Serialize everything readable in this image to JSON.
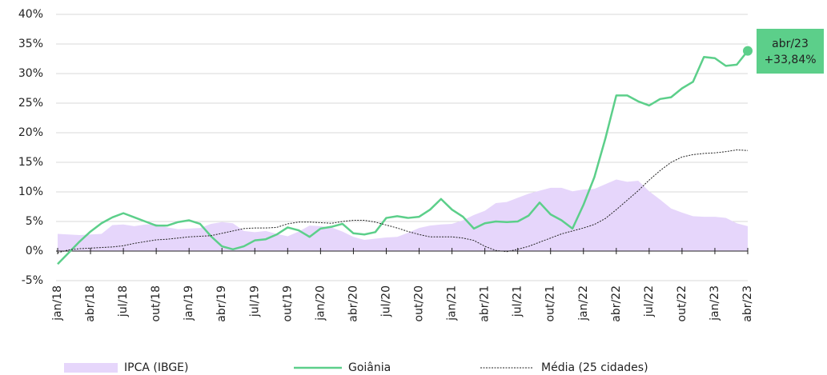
{
  "chart_data": {
    "type": "line",
    "categories": [
      "jan/18",
      null,
      null,
      "abr/18",
      null,
      null,
      "jul/18",
      null,
      null,
      "out/18",
      null,
      null,
      "jan/19",
      null,
      null,
      "abr/19",
      null,
      null,
      "jul/19",
      null,
      null,
      "out/19",
      null,
      null,
      "jan/20",
      null,
      null,
      "abr/20",
      null,
      null,
      "jul/20",
      null,
      null,
      "out/20",
      null,
      null,
      "jan/21",
      null,
      null,
      "abr/21",
      null,
      null,
      "jul/21",
      null,
      null,
      "out/21",
      null,
      null,
      "jan/22",
      null,
      null,
      "abr/22",
      null,
      null,
      "jul/22",
      null,
      null,
      "out/22",
      null,
      null,
      "jan/23",
      null,
      null,
      "abr/23"
    ],
    "series": [
      {
        "name": "IPCA (IBGE)",
        "kind": "area",
        "color": "#e6d6fb",
        "values": [
          2.9,
          2.8,
          2.7,
          2.8,
          2.9,
          4.4,
          4.5,
          4.2,
          4.5,
          4.6,
          4.0,
          3.7,
          3.8,
          3.9,
          4.6,
          4.9,
          4.7,
          3.4,
          3.2,
          3.4,
          2.9,
          2.5,
          3.3,
          4.3,
          4.2,
          4.0,
          3.3,
          2.4,
          1.9,
          2.1,
          2.3,
          2.4,
          3.1,
          3.9,
          4.3,
          4.5,
          4.6,
          5.2,
          6.1,
          6.8,
          8.1,
          8.3,
          9.0,
          9.7,
          10.2,
          10.7,
          10.7,
          10.1,
          10.4,
          10.5,
          11.3,
          12.1,
          11.7,
          11.9,
          10.1,
          8.7,
          7.2,
          6.5,
          5.9,
          5.8,
          5.8,
          5.6,
          4.7,
          4.2
        ]
      },
      {
        "name": "Goiânia",
        "kind": "line",
        "color": "#5ccf8a",
        "values": [
          -2.2,
          -0.3,
          1.6,
          3.3,
          4.7,
          5.7,
          6.4,
          5.7,
          5.0,
          4.3,
          4.3,
          4.9,
          5.2,
          4.6,
          2.5,
          0.8,
          0.3,
          0.8,
          1.8,
          2.0,
          2.8,
          4.0,
          3.5,
          2.4,
          3.8,
          4.1,
          4.6,
          3.0,
          2.8,
          3.2,
          5.6,
          5.9,
          5.6,
          5.8,
          7.0,
          8.8,
          7.0,
          5.8,
          3.8,
          4.7,
          5.0,
          4.9,
          5.0,
          6.0,
          8.2,
          6.2,
          5.2,
          3.8,
          7.8,
          12.5,
          19.0,
          26.3,
          26.3,
          25.3,
          24.6,
          25.7,
          26.0,
          27.5,
          28.6,
          32.8,
          32.6,
          31.3,
          31.5,
          33.84
        ]
      },
      {
        "name": "Média (25 cidades)",
        "kind": "dotted",
        "color": "#222222",
        "values": [
          -0.3,
          0.2,
          0.4,
          0.5,
          0.6,
          0.7,
          0.9,
          1.3,
          1.6,
          1.9,
          2.0,
          2.2,
          2.4,
          2.5,
          2.6,
          3.0,
          3.4,
          3.8,
          3.9,
          3.9,
          4.0,
          4.6,
          4.9,
          4.9,
          4.8,
          4.7,
          5.0,
          5.2,
          5.2,
          4.9,
          4.4,
          3.9,
          3.3,
          2.8,
          2.4,
          2.4,
          2.4,
          2.2,
          1.8,
          0.8,
          0.1,
          -0.1,
          0.3,
          0.8,
          1.5,
          2.2,
          2.9,
          3.4,
          3.9,
          4.5,
          5.5,
          7.0,
          8.6,
          10.2,
          12.0,
          13.6,
          15.0,
          15.9,
          16.3,
          16.5,
          16.6,
          16.8,
          17.1,
          17.0
        ]
      }
    ],
    "ylim": [
      -5,
      40
    ],
    "yticks": [
      {
        "value": -5,
        "label": "-5%"
      },
      {
        "value": 0,
        "label": "0%"
      },
      {
        "value": 5,
        "label": "5%"
      },
      {
        "value": 10,
        "label": "10%"
      },
      {
        "value": 15,
        "label": "15%"
      },
      {
        "value": 20,
        "label": "20%"
      },
      {
        "value": 25,
        "label": "25%"
      },
      {
        "value": 30,
        "label": "30%"
      },
      {
        "value": 35,
        "label": "35%"
      },
      {
        "value": 40,
        "label": "40%"
      }
    ],
    "grid": true,
    "annotation": {
      "text": "abr/23",
      "value_label": "+33,84%",
      "color": "#5ccf8a"
    }
  }
}
